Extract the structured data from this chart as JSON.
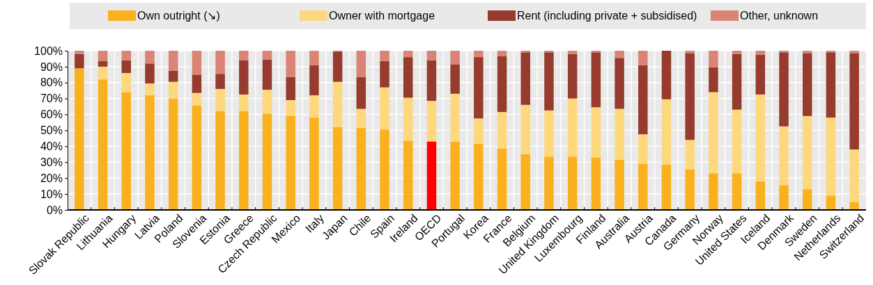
{
  "chart_data": {
    "type": "bar",
    "stacked": true,
    "categories": [
      "Slovak Republic",
      "Lithuania",
      "Hungary",
      "Latvia",
      "Poland",
      "Slovenia",
      "Estonia",
      "Greece",
      "Czech Republic",
      "Mexico",
      "Italy",
      "Japan",
      "Chile",
      "Spain",
      "Ireland",
      "OECD",
      "Portugal",
      "Korea",
      "France",
      "Belgium",
      "United Kingdom",
      "Luxembourg",
      "Finland",
      "Australia",
      "Austria",
      "Canada",
      "Germany",
      "Norway",
      "United States",
      "Iceland",
      "Denmark",
      "Sweden",
      "Netherlands",
      "Switzerland"
    ],
    "series": [
      {
        "name": "Own outright (↘)",
        "color": "#fbb01d",
        "colors": [
          "#fbb01d",
          "#fbb01d",
          "#fbb01d",
          "#fbb01d",
          "#fbb01d",
          "#fbb01d",
          "#fbb01d",
          "#fbb01d",
          "#fbb01d",
          "#fbb01d",
          "#fbb01d",
          "#fbb01d",
          "#fbb01d",
          "#fbb01d",
          "#fbb01d",
          "#ff0000",
          "#fbb01d",
          "#fbb01d",
          "#fbb01d",
          "#fbb01d",
          "#fbb01d",
          "#fbb01d",
          "#fbb01d",
          "#fbb01d",
          "#fbb01d",
          "#fbb01d",
          "#fbb01d",
          "#fbb01d",
          "#fbb01d",
          "#fbb01d",
          "#fbb01d",
          "#fbb01d",
          "#fbb01d",
          "#fbb01d"
        ],
        "values": [
          89,
          82,
          74,
          72,
          70,
          65.5,
          62,
          62,
          60.5,
          59,
          58,
          52,
          51.5,
          50.5,
          43.5,
          43,
          43,
          41.5,
          38.5,
          35,
          33.5,
          33.5,
          33,
          31.5,
          29,
          28.5,
          25.5,
          23,
          23,
          18,
          15.5,
          13,
          9,
          5
        ]
      },
      {
        "name": "Owner with mortgage",
        "color": "#fed87d",
        "values": [
          0,
          8,
          12,
          7.5,
          10.5,
          8,
          14,
          10.5,
          15,
          10,
          14,
          28.5,
          12,
          26.5,
          27,
          25.5,
          30,
          16,
          23,
          31,
          29,
          36.5,
          31.5,
          32,
          18.5,
          41,
          18.5,
          51,
          40,
          54.5,
          37,
          46,
          49,
          33
        ]
      },
      {
        "name": "Rent (including private + subsidised)",
        "color": "#963b2e",
        "values": [
          9,
          3.5,
          8,
          12.5,
          7,
          11.5,
          9.5,
          21.5,
          19,
          14.5,
          19,
          19,
          20,
          16.5,
          25.5,
          25.5,
          18.5,
          38.5,
          35,
          33,
          36.5,
          28,
          34.5,
          32,
          43.5,
          30.5,
          54.5,
          15.5,
          35,
          25,
          46.5,
          39.5,
          41,
          60.5
        ]
      },
      {
        "name": "Other, unknown",
        "color": "#d98474",
        "values": [
          2,
          6.5,
          6,
          8,
          12.5,
          15,
          14.5,
          6,
          5.5,
          16.5,
          9,
          0.5,
          16.5,
          6.5,
          4,
          6,
          8.5,
          4,
          3.5,
          1,
          1,
          2,
          1,
          4.5,
          9,
          0,
          1.5,
          10.5,
          2,
          2.5,
          1,
          1.5,
          1,
          1.5
        ]
      }
    ],
    "ylim": [
      0,
      100
    ],
    "yticks": [
      {
        "value": 0,
        "label": "0%"
      },
      {
        "value": 10,
        "label": "10%"
      },
      {
        "value": 20,
        "label": "20%"
      },
      {
        "value": 30,
        "label": "30%"
      },
      {
        "value": 40,
        "label": "40%"
      },
      {
        "value": 50,
        "label": "50%"
      },
      {
        "value": 60,
        "label": "60%"
      },
      {
        "value": 70,
        "label": "70%"
      },
      {
        "value": 80,
        "label": "80%"
      },
      {
        "value": 90,
        "label": "90%"
      },
      {
        "value": 100,
        "label": "100%"
      }
    ],
    "grid": true,
    "legend": "top"
  }
}
